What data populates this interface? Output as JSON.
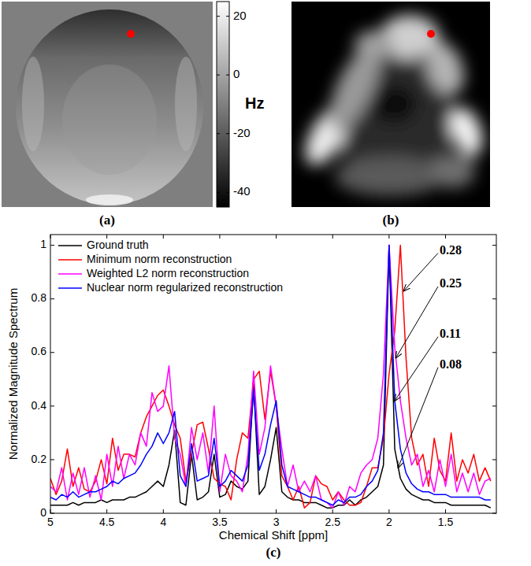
{
  "chart_data": [
    {
      "type": "image",
      "title": "(a)",
      "colorbar_range": [
        -45,
        25
      ],
      "colorbar_ticks": [
        20,
        0,
        -20,
        -40
      ],
      "colorbar_label": "Hz",
      "marker": "circle",
      "color": "#ff0000"
    },
    {
      "type": "image",
      "title": "(b)",
      "marker": "circle",
      "color": "#ff0000"
    },
    {
      "type": "line",
      "title": "(c)",
      "x_label": "Chemical Shift [ppm]",
      "y_label": "Normalized Magnitude Spectrum",
      "xlim": [
        5,
        1.05
      ],
      "ylim": [
        0,
        1.04
      ],
      "xticks": [
        5,
        4.5,
        4,
        3.5,
        3,
        2.5,
        2,
        1.5
      ],
      "yticks": [
        0,
        0.2,
        0.4,
        0.6,
        0.8,
        1
      ],
      "grid": false,
      "legend": "top-left",
      "x": [
        5,
        4.95,
        4.9,
        4.85,
        4.8,
        4.75,
        4.7,
        4.65,
        4.6,
        4.55,
        4.5,
        4.45,
        4.4,
        4.35,
        4.3,
        4.25,
        4.2,
        4.15,
        4.1,
        4.05,
        4,
        3.95,
        3.9,
        3.85,
        3.8,
        3.75,
        3.7,
        3.65,
        3.6,
        3.55,
        3.5,
        3.45,
        3.4,
        3.35,
        3.3,
        3.25,
        3.2,
        3.15,
        3.1,
        3.05,
        3,
        2.95,
        2.9,
        2.85,
        2.8,
        2.75,
        2.7,
        2.65,
        2.6,
        2.55,
        2.5,
        2.45,
        2.4,
        2.35,
        2.3,
        2.25,
        2.2,
        2.15,
        2.1,
        2.05,
        2,
        1.95,
        1.9,
        1.85,
        1.8,
        1.75,
        1.7,
        1.65,
        1.6,
        1.55,
        1.5,
        1.45,
        1.4,
        1.35,
        1.3,
        1.25,
        1.2,
        1.15,
        1.1
      ],
      "series": [
        {
          "name": "Ground truth",
          "color": "#000000",
          "values": [
            0.03,
            0.03,
            0.03,
            0.03,
            0.04,
            0.03,
            0.04,
            0.04,
            0.04,
            0.05,
            0.04,
            0.05,
            0.05,
            0.05,
            0.06,
            0.06,
            0.07,
            0.08,
            0.1,
            0.12,
            0.1,
            0.18,
            0.31,
            0.04,
            0.03,
            0.22,
            0.05,
            0.06,
            0.08,
            0.22,
            0.06,
            0.07,
            0.12,
            0.1,
            0.09,
            0.12,
            0.48,
            0.07,
            0.1,
            0.2,
            0.32,
            0.08,
            0.06,
            0.05,
            0.05,
            0.04,
            0.04,
            0.04,
            0.03,
            0.02,
            0.02,
            0.03,
            0.03,
            0.05,
            0.03,
            0.05,
            0.06,
            0.08,
            0.1,
            0.18,
            1.0,
            0.24,
            0.13,
            0.09,
            0.07,
            0.06,
            0.05,
            0.05,
            0.04,
            0.04,
            0.04,
            0.03,
            0.03,
            0.03,
            0.03,
            0.03,
            0.03,
            0.03,
            0.02
          ]
        },
        {
          "name": "Minimum norm reconstruction",
          "color": "#ff0000",
          "values": [
            0.13,
            0.07,
            0.12,
            0.24,
            0.1,
            0.17,
            0.09,
            0.08,
            0.12,
            0.2,
            0.11,
            0.28,
            0.16,
            0.22,
            0.22,
            0.21,
            0.3,
            0.36,
            0.4,
            0.44,
            0.46,
            0.4,
            0.33,
            0.28,
            0.12,
            0.22,
            0.33,
            0.34,
            0.24,
            0.13,
            0.11,
            0.1,
            0.05,
            0.2,
            0.3,
            0.28,
            0.5,
            0.53,
            0.35,
            0.53,
            0.4,
            0.14,
            0.1,
            0.05,
            0.1,
            0.02,
            0.04,
            0.14,
            0.11,
            0.1,
            0.05,
            0.08,
            0.05,
            0.03,
            0.03,
            0.04,
            0.1,
            0.17,
            0.17,
            0.28,
            0.52,
            0.68,
            1.0,
            0.58,
            0.28,
            0.18,
            0.22,
            0.1,
            0.28,
            0.16,
            0.12,
            0.3,
            0.12,
            0.2,
            0.15,
            0.22,
            0.12,
            0.17,
            0.12
          ]
        },
        {
          "name": "Weighted L2 norm reconstruction",
          "color": "#ff00ff",
          "values": [
            0.1,
            0.08,
            0.17,
            0.05,
            0.15,
            0.07,
            0.17,
            0.06,
            0.14,
            0.05,
            0.22,
            0.1,
            0.25,
            0.13,
            0.22,
            0.18,
            0.3,
            0.25,
            0.45,
            0.38,
            0.4,
            0.55,
            0.28,
            0.22,
            0.1,
            0.32,
            0.2,
            0.3,
            0.15,
            0.4,
            0.08,
            0.22,
            0.14,
            0.12,
            0.08,
            0.22,
            0.53,
            0.22,
            0.32,
            0.55,
            0.4,
            0.24,
            0.1,
            0.18,
            0.08,
            0.12,
            0.08,
            0.14,
            0.05,
            0.04,
            0.02,
            0.08,
            0.03,
            0.1,
            0.08,
            0.15,
            0.18,
            0.2,
            0.28,
            0.52,
            1.0,
            0.62,
            0.42,
            0.28,
            0.18,
            0.22,
            0.1,
            0.16,
            0.08,
            0.2,
            0.1,
            0.22,
            0.08,
            0.15,
            0.08,
            0.15,
            0.07,
            0.12,
            0.13
          ]
        },
        {
          "name": "Nuclear norm regularized reconstruction",
          "color": "#0000ff",
          "values": [
            0.06,
            0.05,
            0.07,
            0.06,
            0.08,
            0.06,
            0.07,
            0.08,
            0.08,
            0.09,
            0.1,
            0.12,
            0.11,
            0.13,
            0.14,
            0.15,
            0.18,
            0.22,
            0.25,
            0.3,
            0.26,
            0.3,
            0.38,
            0.14,
            0.1,
            0.26,
            0.12,
            0.13,
            0.14,
            0.28,
            0.1,
            0.12,
            0.16,
            0.14,
            0.12,
            0.18,
            0.46,
            0.16,
            0.22,
            0.33,
            0.42,
            0.18,
            0.1,
            0.09,
            0.08,
            0.07,
            0.06,
            0.06,
            0.05,
            0.04,
            0.03,
            0.05,
            0.04,
            0.06,
            0.06,
            0.07,
            0.1,
            0.12,
            0.16,
            0.3,
            1.0,
            0.42,
            0.24,
            0.15,
            0.11,
            0.09,
            0.08,
            0.08,
            0.07,
            0.07,
            0.07,
            0.06,
            0.06,
            0.06,
            0.06,
            0.06,
            0.06,
            0.05,
            0.05
          ]
        }
      ],
      "annotations": [
        {
          "text": "0.28",
          "x": 1.87,
          "y": 0.83
        },
        {
          "text": "0.25",
          "x": 1.94,
          "y": 0.58
        },
        {
          "text": "0.11",
          "x": 1.95,
          "y": 0.42
        },
        {
          "text": "0.08",
          "x": 1.92,
          "y": 0.17
        }
      ]
    }
  ]
}
